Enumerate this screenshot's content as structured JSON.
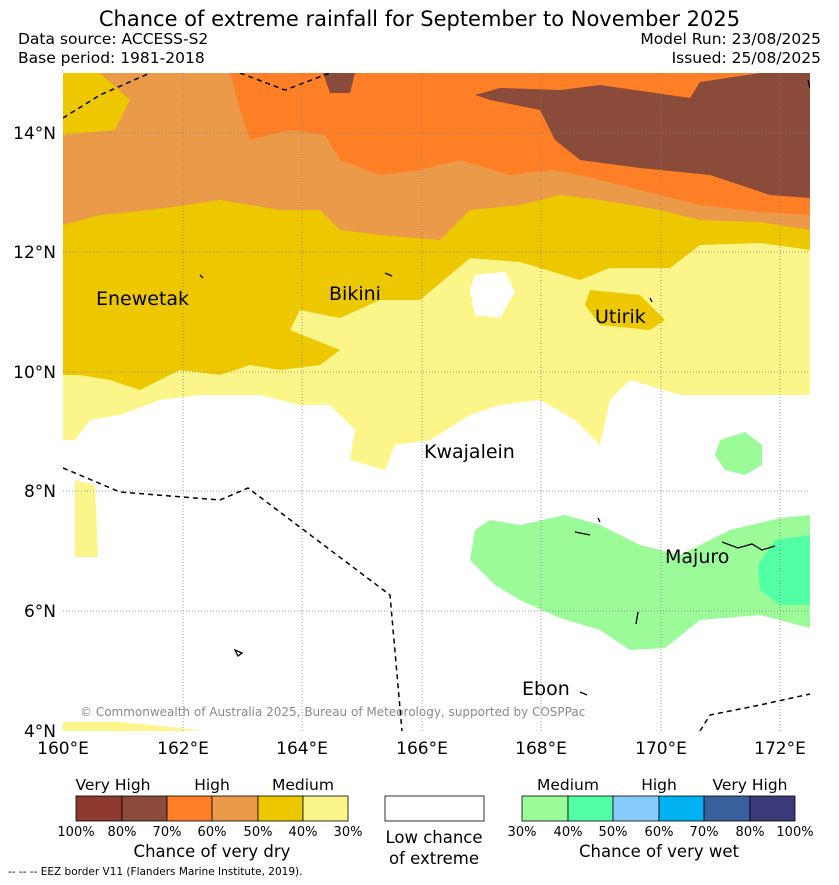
{
  "header": {
    "title": "Chance of extreme rainfall for September to November 2025",
    "data_source": "Data source: ACCESS-S2",
    "base_period": "Base period: 1981-2018",
    "model_run": "Model Run: 23/08/2025",
    "issued": "Issued: 25/08/2025"
  },
  "map": {
    "lat_labels": [
      "14°N",
      "12°N",
      "10°N",
      "8°N",
      "6°N",
      "4°N"
    ],
    "lon_labels": [
      "160°E",
      "162°E",
      "164°E",
      "166°E",
      "168°E",
      "170°E",
      "172°E"
    ],
    "places": [
      "Enewetak",
      "Bikini",
      "Utirik",
      "Kwajalein",
      "Majuro",
      "Ebon"
    ],
    "copyright": "© Commonwealth of Australia 2025, Bureau of Meteorology, supported by COSPPac",
    "colors": {
      "dry_100_80": "#8e3b2f",
      "dry_80_70": "#8b4b3b",
      "dry_70_60": "#ff7f27",
      "dry_60_50": "#ea9a48",
      "dry_50_40": "#edc700",
      "dry_40_30": "#fcf68a",
      "wet_30_40": "#9bfb98",
      "wet_40_50": "#52ffa5",
      "wet_50_60": "#87cbfd",
      "wet_60_70": "#00b2ef",
      "wet_70_80": "#395f9d",
      "wet_80_100": "#3c3a79",
      "low_chance": "#ffffff"
    }
  },
  "legend": {
    "dry": {
      "levels": [
        "Very High",
        "High",
        "Medium"
      ],
      "ticks": [
        "100%",
        "80%",
        "70%",
        "60%",
        "50%",
        "40%",
        "30%"
      ],
      "caption": "Chance of very dry"
    },
    "neutral": {
      "caption_line1": "Low chance",
      "caption_line2": "of extreme"
    },
    "wet": {
      "levels": [
        "Medium",
        "High",
        "Very High"
      ],
      "ticks": [
        "30%",
        "40%",
        "50%",
        "60%",
        "70%",
        "80%",
        "100%"
      ],
      "caption": "Chance of very wet"
    }
  },
  "footnote": "--  --  -- EEZ border V11 (Flanders Marine Institute, 2019)."
}
